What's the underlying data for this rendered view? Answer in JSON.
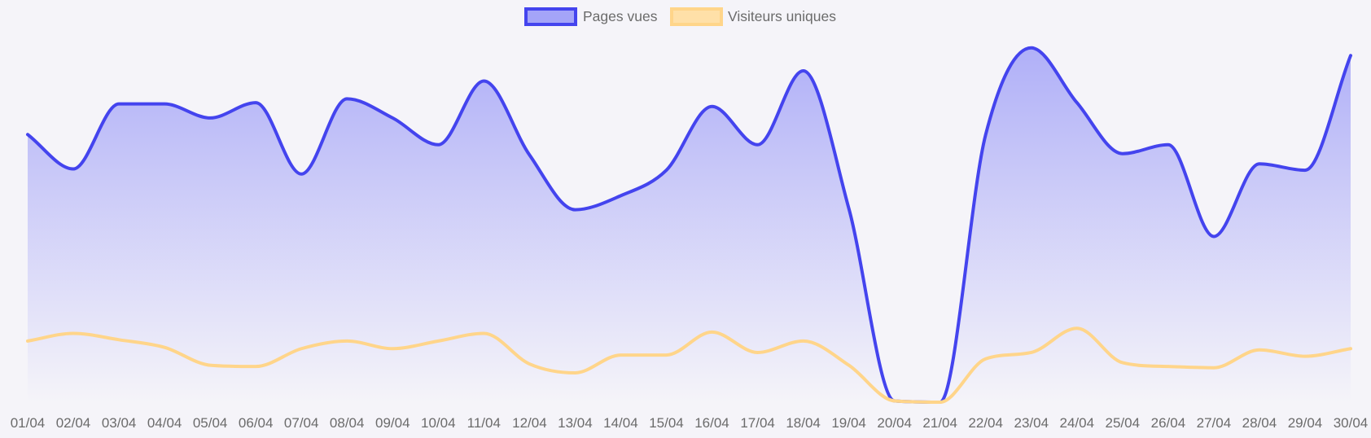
{
  "chart_data": {
    "type": "area",
    "title": "",
    "xlabel": "",
    "ylabel": "",
    "grid": false,
    "legend_position": "top-center",
    "ylim": [
      0,
      1450
    ],
    "categories": [
      "01/04",
      "02/04",
      "03/04",
      "04/04",
      "05/04",
      "06/04",
      "07/04",
      "08/04",
      "09/04",
      "10/04",
      "11/04",
      "12/04",
      "13/04",
      "14/04",
      "15/04",
      "16/04",
      "17/04",
      "18/04",
      "19/04",
      "20/04",
      "21/04",
      "22/04",
      "23/04",
      "24/04",
      "25/04",
      "26/04",
      "27/04",
      "28/04",
      "29/04",
      "30/04"
    ],
    "series": [
      {
        "name": "Pages vues",
        "color": "#4444ee",
        "fill": "#a4a4f8",
        "filled": true,
        "values": [
          1050,
          915,
          1170,
          1170,
          1115,
          1175,
          895,
          1190,
          1115,
          1010,
          1260,
          970,
          755,
          810,
          910,
          1160,
          1010,
          1300,
          760,
          5,
          0,
          1050,
          1390,
          1175,
          975,
          1010,
          650,
          935,
          910,
          1360
        ]
      },
      {
        "name": "Visiteurs uniques",
        "color": "#ffd58a",
        "fill": "#ffe0a8",
        "filled": false,
        "values": [
          240,
          270,
          245,
          215,
          145,
          140,
          210,
          240,
          210,
          240,
          270,
          150,
          115,
          185,
          185,
          275,
          195,
          240,
          145,
          5,
          0,
          170,
          195,
          290,
          155,
          140,
          135,
          205,
          180,
          210
        ]
      }
    ]
  }
}
